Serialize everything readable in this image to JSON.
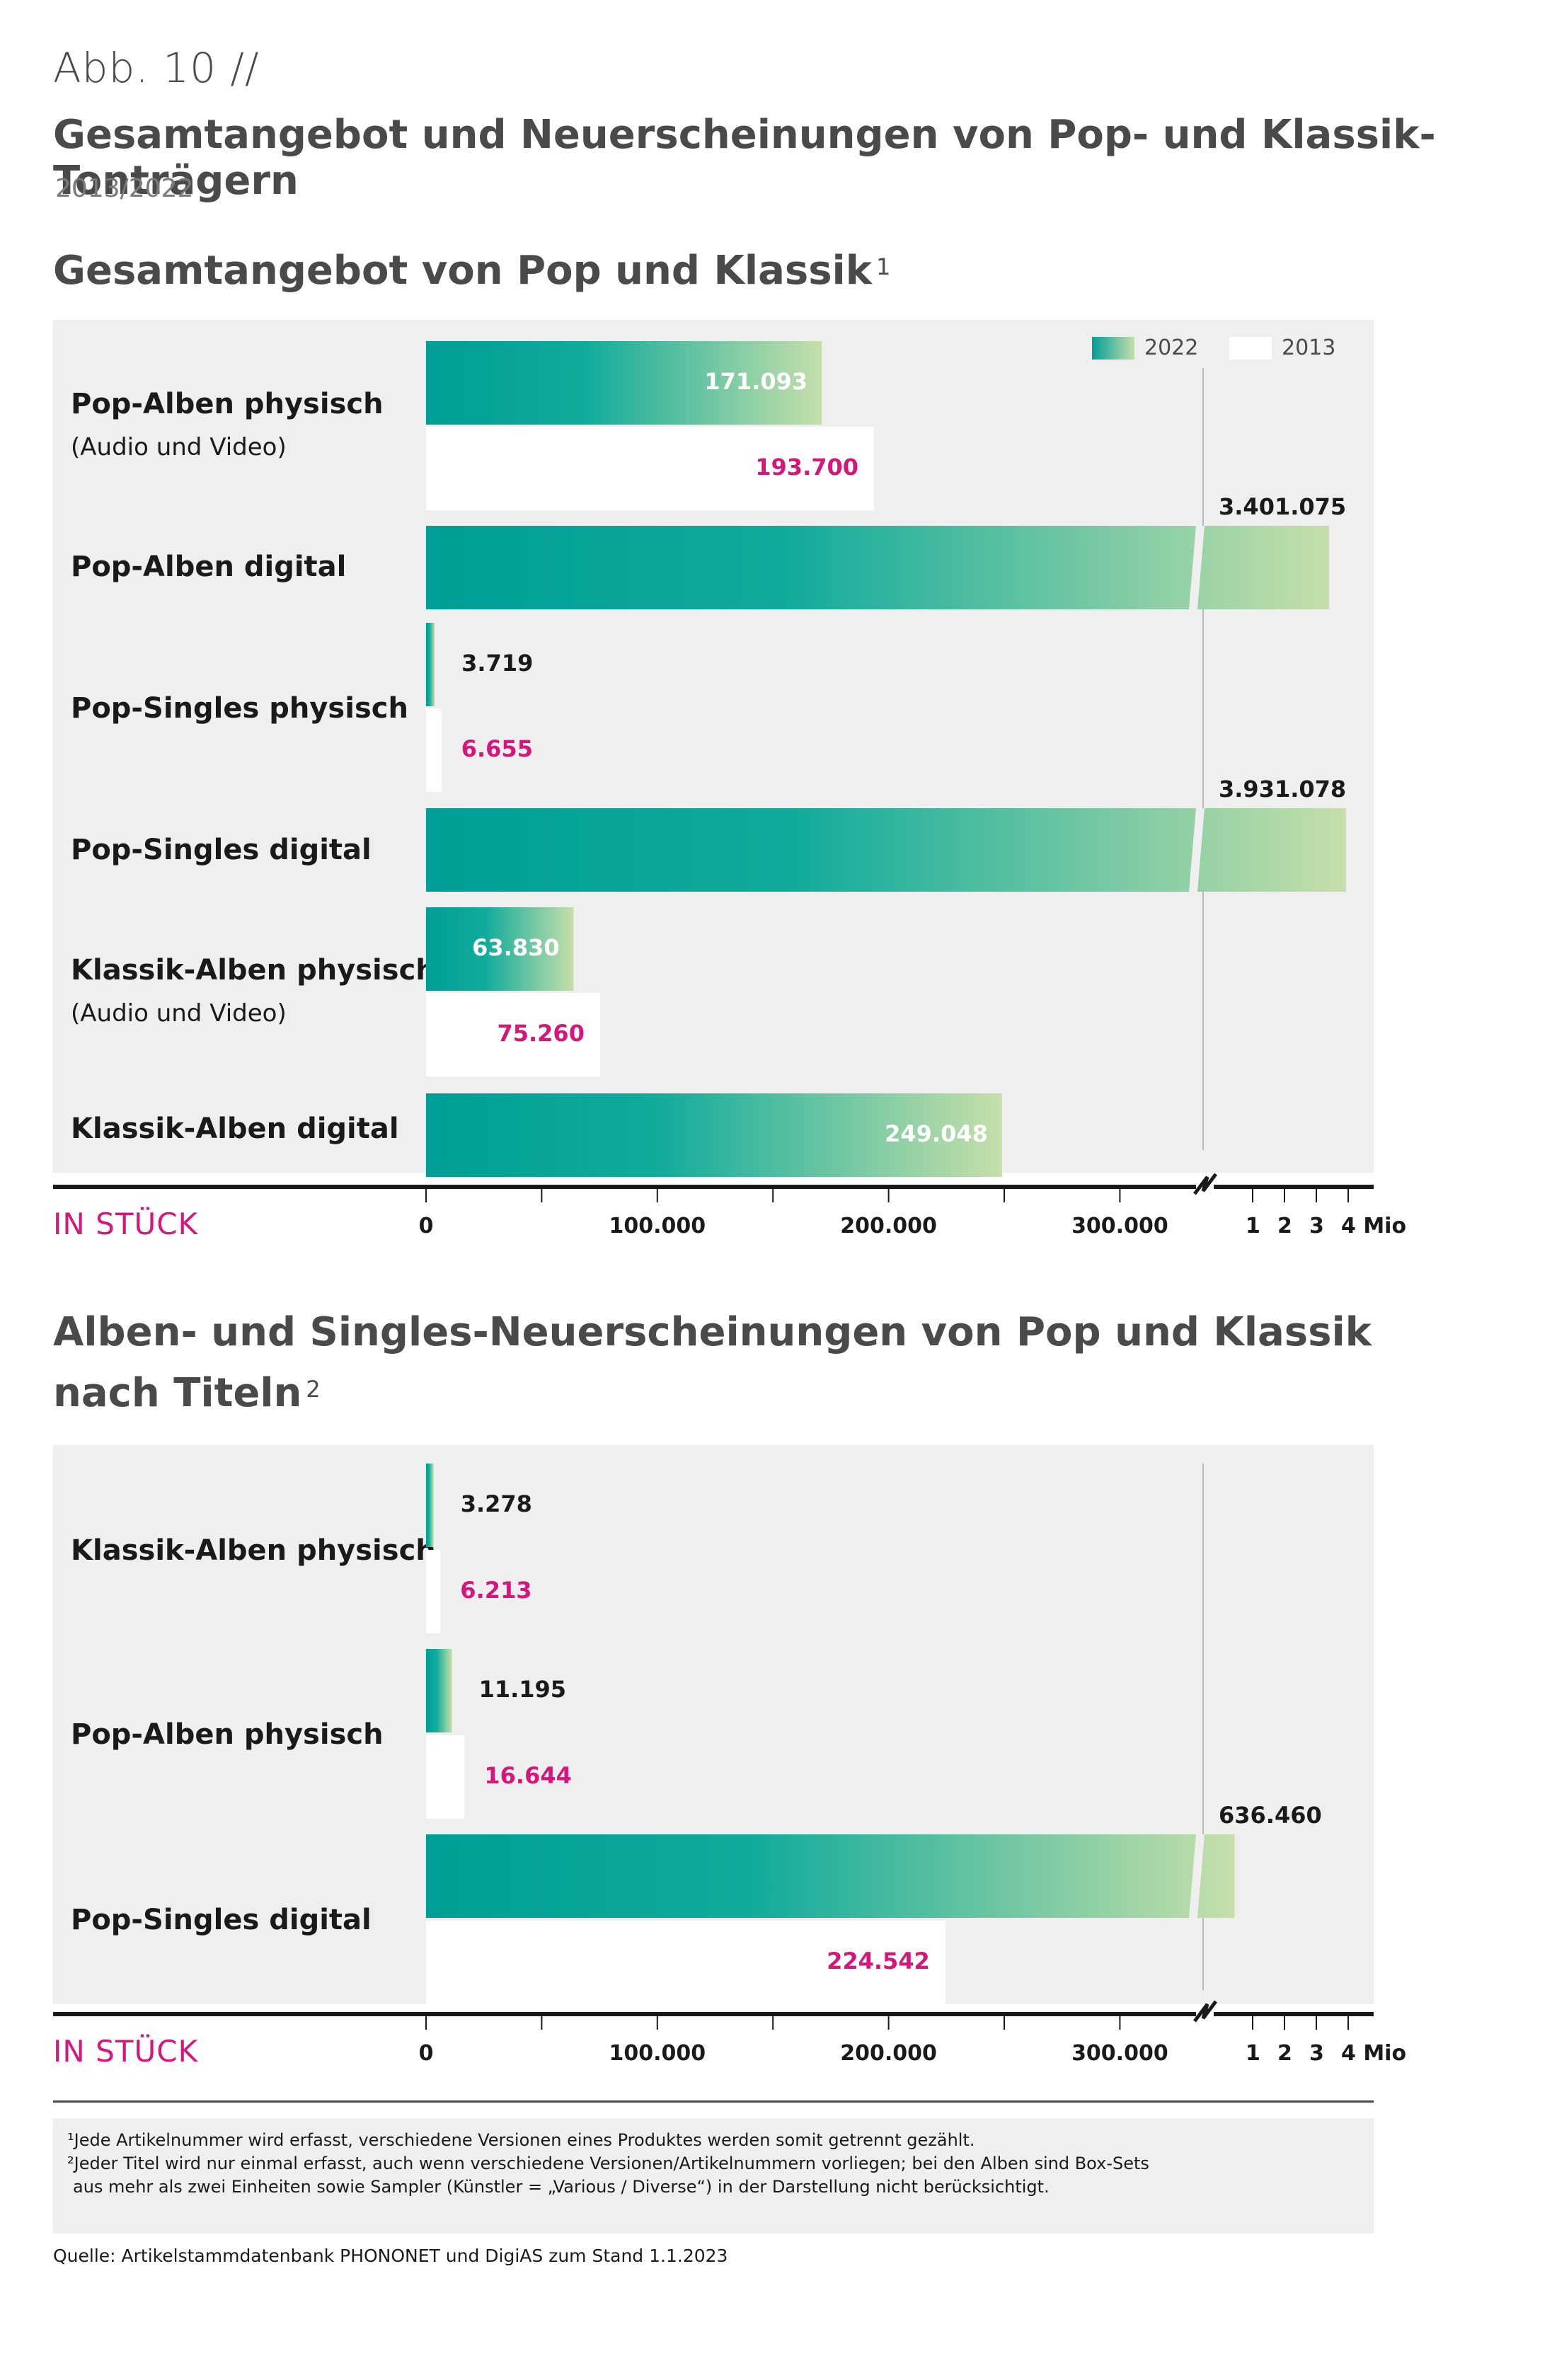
{
  "figure_label": "Abb. 10 //",
  "title": "Gesamtangebot und Neuerscheinungen von Pop- und Klassik-Tonträgern",
  "subtitle": "2013/2022",
  "legend": {
    "y2022": "2022",
    "y2013": "2013",
    "color_2022_start": "#009e96",
    "color_2022_end": "#c6dfaa",
    "color_2013": "#ffffff",
    "value_2013_color": "#d6167a"
  },
  "axis": {
    "unit_label": "IN STÜCK",
    "ticks": [
      "0",
      "100.000",
      "200.000",
      "300.000"
    ],
    "mio_ticks": [
      "1",
      "2",
      "3",
      "4 Mio"
    ]
  },
  "chart_data": [
    {
      "type": "bar",
      "title": "Gesamtangebot von Pop und Klassik",
      "footnote_ref": "1",
      "orientation": "horizontal",
      "categories": [
        "Pop-Alben physisch",
        "Pop-Alben digital",
        "Pop-Singles physisch",
        "Pop-Singles digital",
        "Klassik-Alben physisch",
        "Klassik-Alben digital"
      ],
      "category_notes": [
        "(Audio und Video)",
        "",
        "",
        "",
        "(Audio und Video)",
        ""
      ],
      "series": [
        {
          "name": "2022",
          "values": [
            171093,
            3401075,
            3719,
            3931078,
            63830,
            249048
          ],
          "labels": [
            "171.093",
            "3.401.075",
            "3.719",
            "3.931.078",
            "63.830",
            "249.048"
          ]
        },
        {
          "name": "2013",
          "values": [
            193700,
            null,
            6655,
            null,
            75260,
            null
          ],
          "labels": [
            "193.700",
            "",
            "6.655",
            "",
            "75.260",
            ""
          ]
        }
      ],
      "xlabel": "IN STÜCK",
      "axis_break": "between 300.000 and 1 Mio",
      "xlim": [
        0,
        4000000
      ]
    },
    {
      "type": "bar",
      "title": "Alben- und Singles-Neuerscheinungen von Pop und Klassik nach Titeln",
      "title_line1": "Alben- und Singles-Neuerscheinungen von Pop und Klassik",
      "title_line2": "nach Titeln",
      "footnote_ref": "2",
      "orientation": "horizontal",
      "categories": [
        "Klassik-Alben physisch",
        "Pop-Alben physisch",
        "Pop-Singles digital"
      ],
      "series": [
        {
          "name": "2022",
          "values": [
            3278,
            11195,
            636460
          ],
          "labels": [
            "3.278",
            "11.195",
            "636.460"
          ]
        },
        {
          "name": "2013",
          "values": [
            6213,
            16644,
            224542
          ],
          "labels": [
            "6.213",
            "16.644",
            "224.542"
          ]
        }
      ],
      "xlabel": "IN STÜCK",
      "axis_break": "between 300.000 and 1 Mio",
      "xlim": [
        0,
        4000000
      ]
    }
  ],
  "footnotes": {
    "f1": "¹Jede Artikelnummer wird erfasst, verschiedene Versionen eines Produktes werden somit getrennt gezählt.",
    "f2a": "²Jeder Titel wird nur einmal erfasst, auch wenn verschiedene Versionen/Artikelnummern vorliegen; bei den Alben sind Box-Sets",
    "f2b": "aus mehr als zwei Einheiten sowie Sampler (Künstler = „Various / Diverse“) in der Darstellung nicht berücksichtigt."
  },
  "source": "Quelle: Artikelstammdatenbank PHONONET und DigiAS zum Stand 1.1.2023"
}
